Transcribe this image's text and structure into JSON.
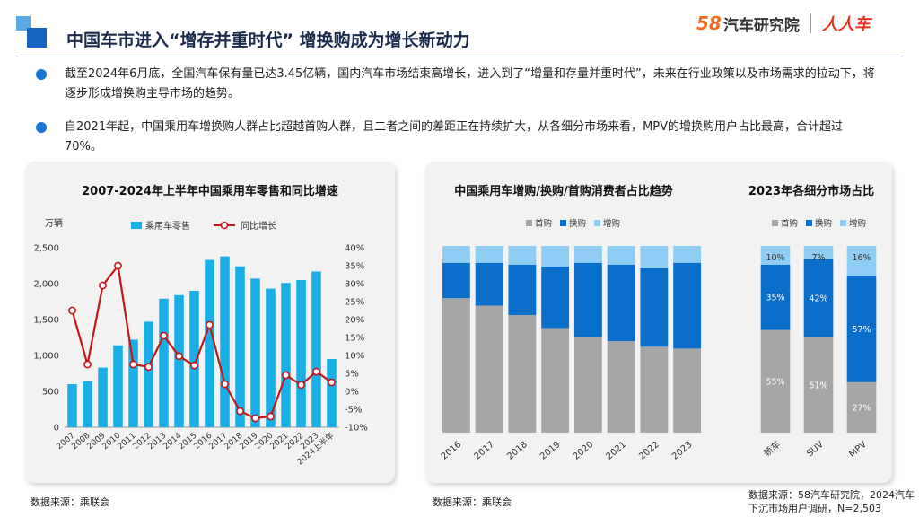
{
  "header": {
    "title": "中国车市进入“增存并重时代” 增换购成为增长新动力",
    "logo_58": "58",
    "logo_text": "汽车研究院",
    "logo_rrc": "人人车"
  },
  "bullets": [
    "截至2024年6月底，全国汽车保有量已达3.45亿辆，国内汽车市场结束高增长，进入到了“增量和存量并重时代”，未来在行业政策以及市场需求的拉动下，将逐步形成增换购主导市场的趋势。",
    "自2021年起，中国乘用车增换购人群占比超越首购人群，且二者之间的差距正在持续扩大，从各细分市场来看，MPV的增换购用户占比最高，合计超过70%。"
  ],
  "colors": {
    "bar_blue": "#1aaee6",
    "line_red": "#c0171c",
    "first": "#a6a6a6",
    "replace": "#0a6ecb",
    "add": "#8fcdf5"
  },
  "chart_data": [
    {
      "type": "bar",
      "title": "2007-2024年上半年中国乘用车零售和同比增速",
      "y_unit": "万辆",
      "categories": [
        "2007",
        "2008",
        "2009",
        "2010",
        "2011",
        "2012",
        "2013",
        "2014",
        "2015",
        "2016",
        "2017",
        "2018",
        "2019",
        "2020",
        "2021",
        "2022",
        "2023",
        "2024上半年"
      ],
      "series": [
        {
          "name": "乘用车零售",
          "type": "bar",
          "axis": "left",
          "values": [
            600,
            640,
            830,
            1140,
            1220,
            1470,
            1790,
            1840,
            1900,
            2330,
            2380,
            2240,
            2070,
            1930,
            2010,
            2050,
            2170,
            950
          ]
        },
        {
          "name": "同比增长",
          "type": "line",
          "axis": "right",
          "values": [
            22.5,
            7.5,
            29.5,
            35,
            7.5,
            6.8,
            15.5,
            9.8,
            7.2,
            18.5,
            2,
            -5.5,
            -7.5,
            -7,
            4.5,
            1.8,
            5.5,
            2.5
          ]
        }
      ],
      "ylim_left": [
        0,
        2500
      ],
      "ylim_right": [
        -10,
        40
      ],
      "left_ticks": [
        "0",
        "500",
        "1,000",
        "1,500",
        "2,000",
        "2,500"
      ],
      "right_ticks": [
        "-10%",
        "-5%",
        "0%",
        "5%",
        "10%",
        "15%",
        "20%",
        "25%",
        "30%",
        "35%",
        "40%"
      ],
      "legend_position": "top",
      "source": "数据来源：乘联会"
    },
    {
      "type": "bar",
      "stacked": true,
      "title": "中国乘用车增购/换购/首购消费者占比趋势",
      "categories": [
        "2016",
        "2017",
        "2018",
        "2019",
        "2020",
        "2021",
        "2022",
        "2023"
      ],
      "series": [
        {
          "name": "首购",
          "values": [
            72,
            68,
            63,
            56,
            51,
            49,
            46,
            45
          ]
        },
        {
          "name": "换购",
          "values": [
            19,
            23,
            27,
            33,
            40,
            41,
            42,
            46
          ]
        },
        {
          "name": "增购",
          "values": [
            9,
            9,
            10,
            11,
            9,
            10,
            12,
            9
          ]
        }
      ],
      "ylim": [
        0,
        100
      ],
      "legend_position": "top",
      "source": "数据来源：乘联会"
    },
    {
      "type": "bar",
      "stacked": true,
      "title": "2023年各细分市场占比",
      "categories": [
        "轿车",
        "SUV",
        "MPV"
      ],
      "series": [
        {
          "name": "首购",
          "values": [
            55,
            51,
            27
          ]
        },
        {
          "name": "换购",
          "values": [
            35,
            42,
            57
          ]
        },
        {
          "name": "增购",
          "values": [
            10,
            7,
            16
          ]
        }
      ],
      "value_labels": [
        [
          "55%",
          "35%",
          "10%"
        ],
        [
          "51%",
          "42%",
          "7%"
        ],
        [
          "27%",
          "57%",
          "16%"
        ]
      ],
      "ylim": [
        0,
        100
      ],
      "legend_position": "top",
      "source_line1": "数据来源：58汽车研究院，2024汽车",
      "source_line2": "下沉市场用户调研，N=2,503"
    }
  ]
}
